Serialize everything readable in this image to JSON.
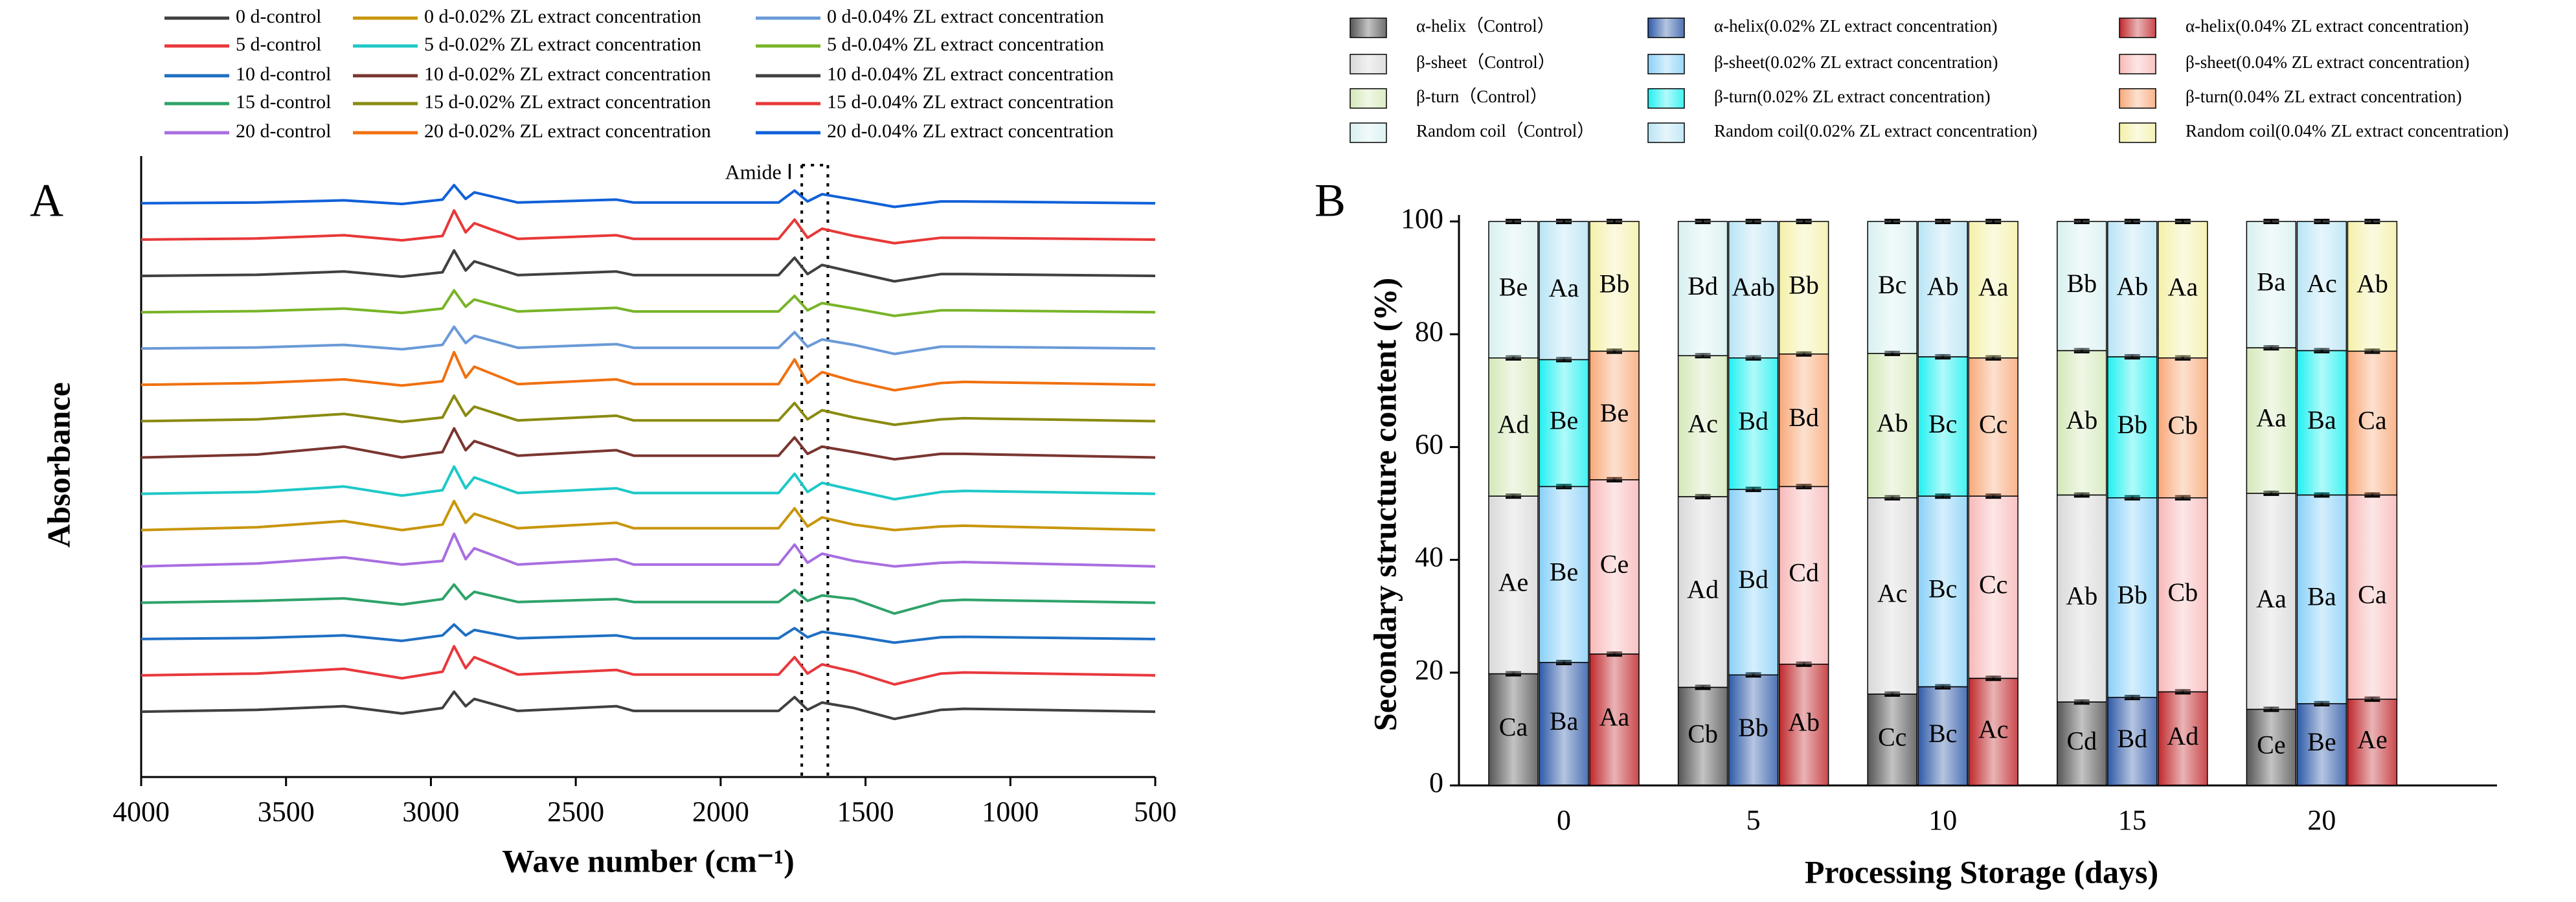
{
  "chart_data": [
    {
      "type": "line",
      "panel": "A",
      "xlabel": "Wave number (cm⁻¹)",
      "ylabel": "Absorbance",
      "xlim": [
        4000,
        500
      ],
      "xticks": [
        4000,
        3500,
        3000,
        2500,
        2000,
        1500,
        1000,
        500
      ],
      "ylim": [
        -1.8,
        15.3
      ],
      "annotation": {
        "text": "Amide Ⅰ",
        "x": [
          1720,
          1630
        ]
      },
      "x": [
        4000,
        3600,
        3300,
        3100,
        2960,
        2920,
        2880,
        2850,
        2700,
        2360,
        2300,
        1800,
        1745,
        1700,
        1650,
        1540,
        1400,
        1240,
        1160,
        500
      ],
      "series": [
        {
          "name": "0 d-control",
          "color": "#404040",
          "values": [
            0,
            0.05,
            0.15,
            -0.05,
            0.1,
            0.55,
            0.15,
            0.35,
            0.02,
            0.15,
            0.02,
            0.02,
            0.4,
            0.05,
            0.25,
            0.1,
            -0.2,
            0.05,
            0.08,
            0
          ]
        },
        {
          "name": "5 d-control",
          "color": "#e8383c",
          "values": [
            1,
            1.05,
            1.18,
            0.92,
            1.1,
            1.8,
            1.2,
            1.5,
            1.02,
            1.15,
            1.02,
            1.02,
            1.5,
            1.05,
            1.3,
            1.1,
            0.75,
            1.05,
            1.08,
            1
          ]
        },
        {
          "name": "10 d-control",
          "color": "#1f6fc4",
          "values": [
            2,
            2.03,
            2.1,
            1.95,
            2.1,
            2.4,
            2.1,
            2.25,
            2.02,
            2.1,
            2.02,
            2.02,
            2.3,
            2.05,
            2.2,
            2.08,
            1.9,
            2.05,
            2.06,
            2
          ]
        },
        {
          "name": "15 d-control",
          "color": "#2ea36a",
          "values": [
            3,
            3.05,
            3.12,
            2.95,
            3.1,
            3.5,
            3.1,
            3.3,
            3.02,
            3.1,
            3.02,
            3.02,
            3.35,
            3.05,
            3.2,
            3.1,
            2.7,
            3.05,
            3.08,
            3
          ]
        },
        {
          "name": "20 d-control",
          "color": "#a86ee0",
          "values": [
            4,
            4.08,
            4.25,
            4.05,
            4.15,
            4.9,
            4.2,
            4.5,
            4.05,
            4.2,
            4.05,
            4.05,
            4.6,
            4.1,
            4.35,
            4.15,
            4.0,
            4.1,
            4.12,
            4
          ]
        },
        {
          "name": "0 d-0.02% ZL extract concentration",
          "color": "#c8960c",
          "values": [
            5,
            5.08,
            5.25,
            5.0,
            5.15,
            5.8,
            5.2,
            5.45,
            5.05,
            5.2,
            5.05,
            5.05,
            5.6,
            5.1,
            5.35,
            5.15,
            5.0,
            5.1,
            5.12,
            5
          ]
        },
        {
          "name": "5 d-0.02% ZL extract concentration",
          "color": "#1ec8c8",
          "values": [
            6,
            6.05,
            6.2,
            5.95,
            6.1,
            6.75,
            6.15,
            6.45,
            6.02,
            6.15,
            6.02,
            6.02,
            6.55,
            6.05,
            6.3,
            6.1,
            5.85,
            6.05,
            6.08,
            6
          ]
        },
        {
          "name": "10 d-0.02% ZL extract concentration",
          "color": "#7a3530",
          "values": [
            7,
            7.08,
            7.3,
            7.0,
            7.15,
            7.8,
            7.2,
            7.45,
            7.05,
            7.2,
            7.05,
            7.05,
            7.55,
            7.1,
            7.3,
            7.15,
            6.95,
            7.1,
            7.1,
            7
          ]
        },
        {
          "name": "15 d-0.02% ZL extract concentration",
          "color": "#8a8a10",
          "values": [
            8,
            8.05,
            8.2,
            7.98,
            8.1,
            8.7,
            8.15,
            8.4,
            8.02,
            8.15,
            8.02,
            8.02,
            8.5,
            8.05,
            8.3,
            8.1,
            7.9,
            8.05,
            8.08,
            8
          ]
        },
        {
          "name": "20 d-0.02% ZL extract concentration",
          "color": "#f07010",
          "values": [
            9,
            9.05,
            9.15,
            8.98,
            9.1,
            9.9,
            9.2,
            9.5,
            9.02,
            9.15,
            9.02,
            9.02,
            9.7,
            9.05,
            9.35,
            9.1,
            8.85,
            9.05,
            9.08,
            9
          ]
        },
        {
          "name": "0 d-0.04% ZL extract concentration",
          "color": "#6a9ad8",
          "values": [
            10,
            10.03,
            10.1,
            9.98,
            10.1,
            10.6,
            10.15,
            10.35,
            10.02,
            10.12,
            10.02,
            10.02,
            10.45,
            10.05,
            10.25,
            10.1,
            9.85,
            10.05,
            10.05,
            10
          ]
        },
        {
          "name": "5 d-0.04% ZL extract concentration",
          "color": "#78b428",
          "values": [
            11,
            11.03,
            11.1,
            10.98,
            11.1,
            11.6,
            11.15,
            11.35,
            11.02,
            11.12,
            11.02,
            11.02,
            11.45,
            11.05,
            11.25,
            11.1,
            10.9,
            11.05,
            11.05,
            11
          ]
        },
        {
          "name": "10 d-0.04% ZL extract concentration",
          "color": "#404040",
          "values": [
            12,
            12.03,
            12.12,
            11.98,
            12.1,
            12.7,
            12.15,
            12.4,
            12.02,
            12.12,
            12.02,
            12.02,
            12.5,
            12.05,
            12.3,
            12.1,
            11.85,
            12.05,
            12.05,
            12
          ]
        },
        {
          "name": "15 d-0.04% ZL extract concentration",
          "color": "#e83838",
          "values": [
            13,
            13.03,
            13.12,
            12.98,
            13.1,
            13.8,
            13.2,
            13.45,
            13.02,
            13.12,
            13.02,
            13.02,
            13.55,
            13.05,
            13.3,
            13.1,
            12.9,
            13.05,
            13.05,
            13
          ]
        },
        {
          "name": "20 d-0.04% ZL extract concentration",
          "color": "#1060d8",
          "values": [
            14,
            14.02,
            14.08,
            13.98,
            14.1,
            14.5,
            14.12,
            14.3,
            14.02,
            14.1,
            14.02,
            14.02,
            14.35,
            14.05,
            14.25,
            14.1,
            13.9,
            14.05,
            14.05,
            14
          ]
        }
      ]
    },
    {
      "type": "bar",
      "panel": "B",
      "xlabel": "Processing Storage (days)",
      "ylabel": "Secondary structure content  (%)",
      "categories": [
        "0",
        "5",
        "10",
        "15",
        "20"
      ],
      "ylim": [
        0,
        100
      ],
      "yticks": [
        0,
        20,
        40,
        60,
        80,
        100
      ],
      "series": [
        {
          "name": "α-helix（Control）",
          "color": "#555555",
          "values": [
            19.8,
            17.4,
            16.2,
            14.8,
            13.5
          ],
          "errors": [
            0.3,
            0.3,
            0.3,
            0.3,
            0.3
          ],
          "letters": [
            "Ca",
            "Cb",
            "Cc",
            "Cd",
            "Ce"
          ]
        },
        {
          "name": "β-sheet（Control）",
          "color": "#d8d8d8",
          "values": [
            31.5,
            33.8,
            34.8,
            36.7,
            38.3
          ],
          "errors": [
            0.3,
            0.3,
            0.3,
            0.3,
            0.3
          ],
          "letters": [
            "Ae",
            "Ad",
            "Ac",
            "Ab",
            "Aa"
          ]
        },
        {
          "name": "β-turn（Control）",
          "color": "#d4e8b8",
          "values": [
            24.5,
            25.0,
            25.6,
            25.6,
            25.8
          ],
          "errors": [
            0.3,
            0.3,
            0.3,
            0.3,
            0.3
          ],
          "letters": [
            "Ad",
            "Ac",
            "Ab",
            "Ab",
            "Aa"
          ]
        },
        {
          "name": "Random coil（Control）",
          "color": "#d8f0f0",
          "values": [
            24.2,
            23.8,
            23.4,
            22.9,
            22.4
          ],
          "errors": [
            0.3,
            0.3,
            0.3,
            0.3,
            0.3
          ],
          "letters": [
            "Be",
            "Bd",
            "Bc",
            "Bb",
            "Ba"
          ]
        },
        {
          "name": "α-helix(0.02% ZL extract concentration)",
          "color": "#2e5aa8",
          "values": [
            21.8,
            19.6,
            17.5,
            15.6,
            14.5
          ],
          "errors": [
            0.3,
            0.3,
            0.3,
            0.3,
            0.3
          ],
          "letters": [
            "Ba",
            "Bb",
            "Bc",
            "Bd",
            "Be"
          ]
        },
        {
          "name": "β-sheet(0.02% ZL extract concentration)",
          "color": "#88d0f8",
          "values": [
            31.2,
            32.9,
            33.8,
            35.4,
            37.0
          ],
          "errors": [
            0.3,
            0.3,
            0.3,
            0.3,
            0.3
          ],
          "letters": [
            "Be",
            "Bd",
            "Bc",
            "Bb",
            "Ba"
          ]
        },
        {
          "name": "β-turn(0.02% ZL extract concentration)",
          "color": "#20f0f0",
          "values": [
            22.5,
            23.3,
            24.7,
            25.0,
            25.6
          ],
          "errors": [
            0.3,
            0.3,
            0.3,
            0.3,
            0.3
          ],
          "letters": [
            "Be",
            "Bd",
            "Bc",
            "Bb",
            "Ba"
          ]
        },
        {
          "name": "Random coil(0.02% ZL extract concentration)",
          "color": "#b8e4f4",
          "values": [
            24.5,
            24.2,
            24.0,
            24.0,
            22.9
          ],
          "errors": [
            0.3,
            0.3,
            0.3,
            0.3,
            0.3
          ],
          "letters": [
            "Aa",
            "Aab",
            "Ab",
            "Ab",
            "Ac"
          ]
        },
        {
          "name": "α-helix(0.04% ZL extract concentration)",
          "color": "#c0282c",
          "values": [
            23.3,
            21.5,
            19.0,
            16.6,
            15.3
          ],
          "errors": [
            0.3,
            0.3,
            0.3,
            0.3,
            0.3
          ],
          "letters": [
            "Aa",
            "Ab",
            "Ac",
            "Ad",
            "Ae"
          ]
        },
        {
          "name": "β-sheet(0.04% ZL extract concentration)",
          "color": "#f8b8b8",
          "values": [
            30.9,
            31.5,
            32.3,
            34.4,
            36.2
          ],
          "errors": [
            0.3,
            0.3,
            0.3,
            0.3,
            0.3
          ],
          "letters": [
            "Ce",
            "Cd",
            "Cc",
            "Cb",
            "Ca"
          ]
        },
        {
          "name": "β-turn(0.04% ZL extract concentration)",
          "color": "#f8a878",
          "values": [
            22.8,
            23.5,
            24.5,
            24.8,
            25.5
          ],
          "errors": [
            0.3,
            0.3,
            0.3,
            0.3,
            0.3
          ],
          "letters": [
            "Be",
            "Bd",
            "Cc",
            "Cb",
            "Ca"
          ]
        },
        {
          "name": "Random coil(0.04% ZL extract concentration)",
          "color": "#f4f0a8",
          "values": [
            23.0,
            23.5,
            24.2,
            24.2,
            23.0
          ],
          "errors": [
            0.3,
            0.3,
            0.3,
            0.3,
            0.3
          ],
          "letters": [
            "Bb",
            "Bb",
            "Aa",
            "Aa",
            "Ab"
          ]
        }
      ]
    }
  ]
}
